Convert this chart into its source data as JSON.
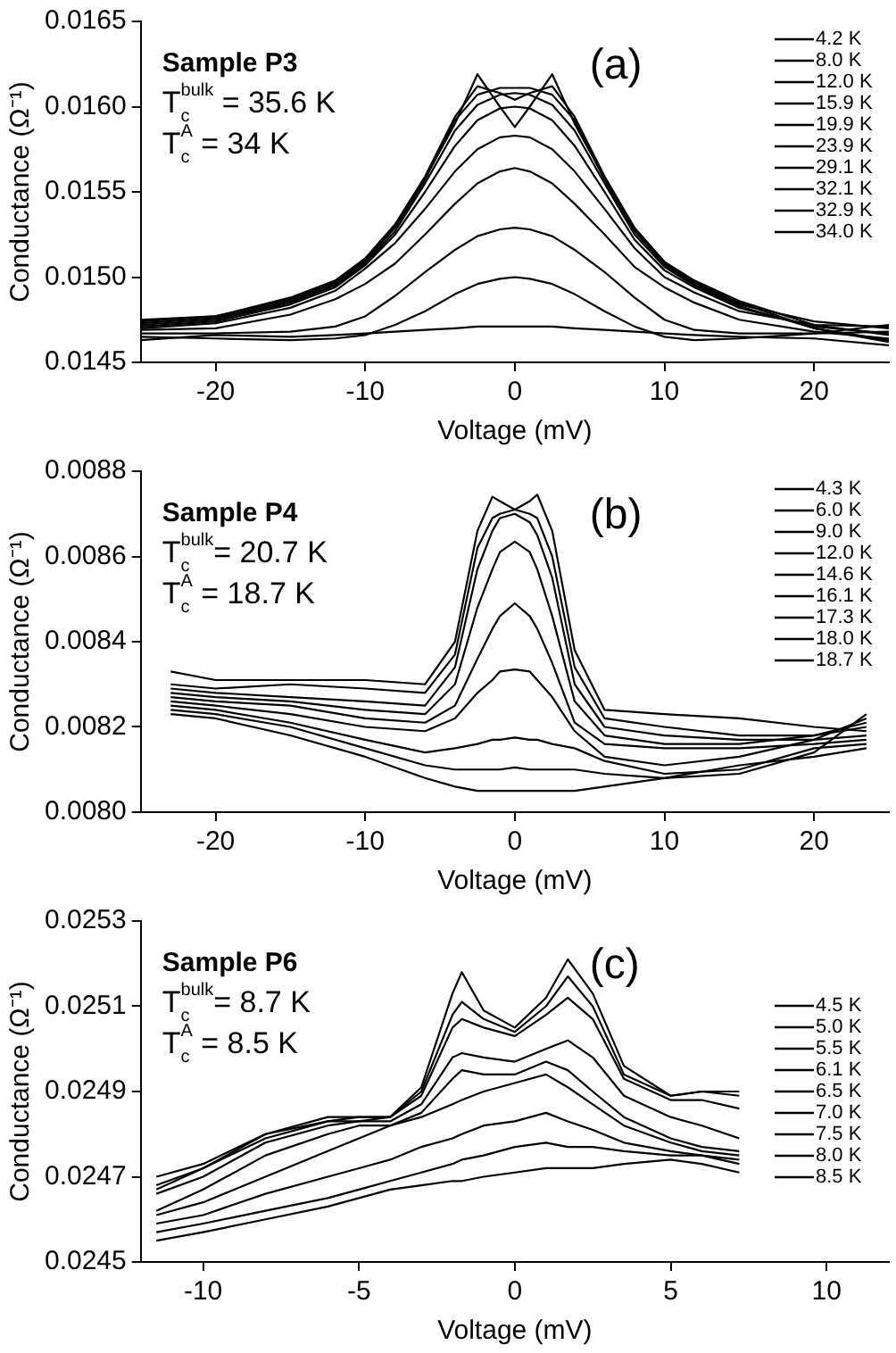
{
  "chart_data": [
    {
      "type": "line",
      "xlabel": "Voltage (mV)",
      "ylabel": "Conductance (Ω⁻¹)",
      "legend": "top right",
      "marker": "none",
      "line_style": "solid",
      "grid": false,
      "annotations": [
        "Sample P3",
        "T$_{c}$$^{bulk}$ = 35.6 K",
        "T$_{c}$$^{A}$ = 34 K",
        "(a)"
      ],
      "xlim": [
        -25,
        25
      ],
      "xticks": [
        -20,
        -10,
        0,
        10,
        20
      ],
      "ylim": [
        0.0145,
        0.0165
      ],
      "yticks": [
        0.0145,
        {
          "value": 0.015,
          "label": "0.0150"
        },
        0.0155,
        {
          "value": 0.016,
          "label": "0.0160"
        },
        0.0165
      ],
      "x": [
        -25,
        -20,
        -15,
        -12,
        -10,
        -8,
        -6,
        -4,
        -2.5,
        -1,
        0,
        1,
        2.5,
        4,
        6,
        8,
        10,
        12,
        15,
        20,
        25
      ],
      "series": [
        {
          "name": "4.2 K",
          "color": "#000000",
          "values": [
            0.01475,
            0.01477,
            0.01487,
            0.01497,
            0.0151,
            0.0153,
            0.01558,
            0.0159,
            0.01619,
            0.016,
            0.01588,
            0.016,
            0.01619,
            0.0159,
            0.01558,
            0.01528,
            0.01508,
            0.01497,
            0.01485,
            0.0147,
            0.01462
          ]
        },
        {
          "name": "8.0 K",
          "color": "#000000",
          "values": [
            0.01474,
            0.01477,
            0.01488,
            0.01498,
            0.01511,
            0.01531,
            0.01559,
            0.01594,
            0.01612,
            0.01608,
            0.01604,
            0.01608,
            0.01612,
            0.01594,
            0.01559,
            0.01529,
            0.01509,
            0.01498,
            0.01486,
            0.01472,
            0.01466
          ]
        },
        {
          "name": "12.0 K",
          "color": "#000000",
          "values": [
            0.01473,
            0.01476,
            0.01486,
            0.01496,
            0.01509,
            0.01529,
            0.01557,
            0.01592,
            0.01607,
            0.01611,
            0.01611,
            0.01611,
            0.01607,
            0.01592,
            0.01557,
            0.01527,
            0.01507,
            0.01496,
            0.01484,
            0.01474,
            0.0147
          ]
        },
        {
          "name": "15.9 K",
          "color": "#000000",
          "values": [
            0.01472,
            0.01475,
            0.01485,
            0.01495,
            0.01508,
            0.01527,
            0.01555,
            0.01586,
            0.01601,
            0.01607,
            0.01608,
            0.01607,
            0.01601,
            0.01586,
            0.01555,
            0.01525,
            0.01506,
            0.01495,
            0.01483,
            0.0147,
            0.01463
          ]
        },
        {
          "name": "19.9 K",
          "color": "#000000",
          "values": [
            0.01471,
            0.01474,
            0.01484,
            0.01494,
            0.01507,
            0.01525,
            0.0155,
            0.01577,
            0.01592,
            0.01599,
            0.016,
            0.01599,
            0.01592,
            0.01577,
            0.0155,
            0.01522,
            0.01504,
            0.01494,
            0.01482,
            0.01471,
            0.01467
          ]
        },
        {
          "name": "23.9 K",
          "color": "#000000",
          "values": [
            0.0147,
            0.01473,
            0.01482,
            0.01492,
            0.01505,
            0.0152,
            0.0154,
            0.01562,
            0.01575,
            0.01582,
            0.01583,
            0.01582,
            0.01575,
            0.01562,
            0.0154,
            0.01517,
            0.015,
            0.01491,
            0.0148,
            0.01472,
            0.01471
          ]
        },
        {
          "name": "29.1 K",
          "color": "#000000",
          "values": [
            0.01469,
            0.0147,
            0.01478,
            0.01487,
            0.01496,
            0.01508,
            0.01525,
            0.01543,
            0.01555,
            0.01562,
            0.01564,
            0.01562,
            0.01555,
            0.01543,
            0.01525,
            0.01506,
            0.01494,
            0.01485,
            0.01475,
            0.01468,
            0.01464
          ]
        },
        {
          "name": "32.1 K",
          "color": "#000000",
          "values": [
            0.01467,
            0.01467,
            0.01468,
            0.01471,
            0.01477,
            0.01489,
            0.01503,
            0.01516,
            0.01524,
            0.01528,
            0.01529,
            0.01528,
            0.01524,
            0.01516,
            0.01503,
            0.01488,
            0.01475,
            0.01469,
            0.01467,
            0.01467,
            0.01468
          ]
        },
        {
          "name": "32.9 K",
          "color": "#000000",
          "values": [
            0.01465,
            0.01464,
            0.01463,
            0.01464,
            0.01466,
            0.01472,
            0.0148,
            0.0149,
            0.01496,
            0.01499,
            0.015,
            0.01499,
            0.01496,
            0.0149,
            0.0148,
            0.01471,
            0.01465,
            0.01463,
            0.01464,
            0.01467,
            0.01472
          ]
        },
        {
          "name": "34.0 K",
          "color": "#000000",
          "values": [
            0.01463,
            0.01466,
            0.01465,
            0.01466,
            0.01467,
            0.01468,
            0.01469,
            0.0147,
            0.01471,
            0.01471,
            0.01471,
            0.01471,
            0.01471,
            0.0147,
            0.01469,
            0.01468,
            0.01467,
            0.01466,
            0.01465,
            0.01464,
            0.0146
          ]
        }
      ]
    },
    {
      "type": "line",
      "xlabel": "Voltage (mV)",
      "ylabel": "Conductance (Ω⁻¹)",
      "legend": "top right",
      "marker": "none",
      "line_style": "solid",
      "grid": false,
      "annotations": [
        "Sample P4",
        "T$_{c}$$^{bulk}$= 20.7 K",
        "T$_{c}$$^{A}$ = 18.7 K",
        "(b)"
      ],
      "xlim": [
        -25,
        25
      ],
      "xticks": [
        -20,
        -10,
        0,
        10,
        20
      ],
      "ylim": [
        0.008,
        0.0088
      ],
      "yticks": [
        {
          "value": 0.008,
          "label": "0.0080"
        },
        0.0082,
        0.0084,
        0.0086,
        0.0088
      ],
      "x": [
        -23,
        -20,
        -15,
        -10,
        -6,
        -4,
        -2.5,
        -1.5,
        -1,
        0,
        1,
        1.5,
        2.5,
        4,
        6,
        10,
        15,
        20,
        23.5
      ],
      "series": [
        {
          "name": "4.3 K",
          "color": "#000000",
          "values": [
            0.00833,
            0.00831,
            0.00831,
            0.00831,
            0.0083,
            0.0084,
            0.00866,
            0.00874,
            0.00873,
            0.00871,
            0.00873,
            0.008745,
            0.00866,
            0.00838,
            0.00824,
            0.00823,
            0.00822,
            0.0082,
            0.00819
          ]
        },
        {
          "name": "6.0 K",
          "color": "#000000",
          "values": [
            0.0083,
            0.00829,
            0.0083,
            0.00829,
            0.00828,
            0.00837,
            0.00862,
            0.00869,
            0.0087,
            0.00871,
            0.0087,
            0.00869,
            0.0086,
            0.00834,
            0.00822,
            0.0082,
            0.00818,
            0.00818,
            0.0082
          ]
        },
        {
          "name": "9.0 K",
          "color": "#000000",
          "values": [
            0.00829,
            0.00828,
            0.00827,
            0.00826,
            0.00825,
            0.00834,
            0.00857,
            0.00866,
            0.00869,
            0.0087,
            0.00868,
            0.00865,
            0.00855,
            0.0083,
            0.0082,
            0.00818,
            0.00817,
            0.00817,
            0.00818
          ]
        },
        {
          "name": "12.0 K",
          "color": "#000000",
          "values": [
            0.00828,
            0.00827,
            0.00826,
            0.00824,
            0.00823,
            0.0083,
            0.00848,
            0.00857,
            0.00861,
            0.008635,
            0.00861,
            0.00857,
            0.00846,
            0.00826,
            0.00818,
            0.00816,
            0.00816,
            0.00818,
            0.00821
          ]
        },
        {
          "name": "14.6 K",
          "color": "#000000",
          "values": [
            0.00827,
            0.00826,
            0.00825,
            0.00822,
            0.00821,
            0.00825,
            0.00836,
            0.00843,
            0.00846,
            0.00849,
            0.00846,
            0.00843,
            0.00835,
            0.00821,
            0.00816,
            0.00815,
            0.00815,
            0.00816,
            0.00817
          ]
        },
        {
          "name": "16.1 K",
          "color": "#000000",
          "values": [
            0.00826,
            0.00825,
            0.00823,
            0.0082,
            0.00819,
            0.00822,
            0.00828,
            0.00831,
            0.00833,
            0.008335,
            0.00833,
            0.00831,
            0.00827,
            0.00819,
            0.00813,
            0.00811,
            0.00813,
            0.00817,
            0.00822
          ]
        },
        {
          "name": "17.3 K",
          "color": "#000000",
          "values": [
            0.00825,
            0.00824,
            0.00821,
            0.00817,
            0.00814,
            0.00815,
            0.00816,
            0.00817,
            0.00817,
            0.008175,
            0.00817,
            0.00817,
            0.00816,
            0.00815,
            0.00812,
            0.00809,
            0.0081,
            0.00815,
            0.00816
          ]
        },
        {
          "name": "18.0 K",
          "color": "#000000",
          "values": [
            0.00824,
            0.00823,
            0.0082,
            0.00815,
            0.00811,
            0.0081,
            0.0081,
            0.0081,
            0.0081,
            0.008105,
            0.0081,
            0.0081,
            0.0081,
            0.0081,
            0.00809,
            0.00808,
            0.00809,
            0.00814,
            0.00823
          ]
        },
        {
          "name": "18.7 K",
          "color": "#000000",
          "values": [
            0.00823,
            0.00822,
            0.00818,
            0.00813,
            0.00808,
            0.00806,
            0.00805,
            0.00805,
            0.00805,
            0.00805,
            0.00805,
            0.00805,
            0.00805,
            0.00805,
            0.00806,
            0.00808,
            0.00811,
            0.00813,
            0.00815
          ]
        }
      ]
    },
    {
      "type": "line",
      "xlabel": "Voltage (mV)",
      "ylabel": "Conductance (Ω⁻¹)",
      "legend": "right",
      "marker": "none",
      "line_style": "solid",
      "grid": false,
      "annotations": [
        "Sample P6",
        "T$_{c}$$^{bulk}$= 8.7 K",
        "T$_{c}$$^{A}$ = 8.5 K",
        "(c)"
      ],
      "xlim": [
        -12,
        12
      ],
      "xticks": [
        -10,
        -5,
        0,
        5,
        10
      ],
      "ylim": [
        0.0245,
        0.0253
      ],
      "yticks": [
        0.0245,
        0.0247,
        0.0249,
        0.0251,
        0.0253
      ],
      "x": [
        -11.5,
        -10,
        -8,
        -6,
        -5,
        -4,
        -3,
        -2,
        -1.7,
        -1,
        0,
        1,
        1.7,
        2.5,
        3.5,
        5,
        6,
        7.2
      ],
      "series": [
        {
          "name": "4.5 K",
          "color": "#000000",
          "values": [
            0.0247,
            0.02473,
            0.0248,
            0.02484,
            0.02484,
            0.02484,
            0.02491,
            0.02513,
            0.02518,
            0.02509,
            0.02505,
            0.02512,
            0.02521,
            0.02513,
            0.02496,
            0.02489,
            0.0249,
            0.0249
          ]
        },
        {
          "name": "5.0 K",
          "color": "#000000",
          "values": [
            0.02468,
            0.02472,
            0.0248,
            0.02483,
            0.02484,
            0.02484,
            0.0249,
            0.02508,
            0.02511,
            0.02507,
            0.02504,
            0.0251,
            0.02517,
            0.0251,
            0.02494,
            0.02489,
            0.0249,
            0.02489
          ]
        },
        {
          "name": "5.5 K",
          "color": "#000000",
          "values": [
            0.02467,
            0.02472,
            0.02479,
            0.02483,
            0.02483,
            0.02484,
            0.02489,
            0.02505,
            0.02507,
            0.02505,
            0.02503,
            0.02508,
            0.02512,
            0.02507,
            0.02493,
            0.02488,
            0.02488,
            0.02486
          ]
        },
        {
          "name": "6.1 K",
          "color": "#000000",
          "values": [
            0.02466,
            0.0247,
            0.02478,
            0.02482,
            0.02483,
            0.02483,
            0.02487,
            0.02498,
            0.02499,
            0.02498,
            0.02497,
            0.025,
            0.02502,
            0.02498,
            0.02489,
            0.02484,
            0.02482,
            0.02479
          ]
        },
        {
          "name": "6.5 K",
          "color": "#000000",
          "values": [
            0.02462,
            0.02467,
            0.02475,
            0.0248,
            0.02482,
            0.02482,
            0.02485,
            0.02493,
            0.02495,
            0.02494,
            0.02494,
            0.02497,
            0.02495,
            0.0249,
            0.02484,
            0.02479,
            0.02477,
            0.02476
          ]
        },
        {
          "name": "7.0 K",
          "color": "#000000",
          "values": [
            0.02461,
            0.02464,
            0.0247,
            0.02476,
            0.02479,
            0.02482,
            0.02484,
            0.02487,
            0.02488,
            0.0249,
            0.02492,
            0.02494,
            0.02491,
            0.02487,
            0.02482,
            0.02478,
            0.02476,
            0.02475
          ]
        },
        {
          "name": "7.5 K",
          "color": "#000000",
          "values": [
            0.02459,
            0.02461,
            0.02466,
            0.0247,
            0.02472,
            0.02474,
            0.02477,
            0.02479,
            0.0248,
            0.02482,
            0.02483,
            0.02485,
            0.02483,
            0.02481,
            0.02478,
            0.02476,
            0.02475,
            0.02474
          ]
        },
        {
          "name": "8.0 K",
          "color": "#000000",
          "values": [
            0.02457,
            0.02459,
            0.02462,
            0.02465,
            0.02467,
            0.02469,
            0.02471,
            0.02473,
            0.02474,
            0.02475,
            0.02477,
            0.02478,
            0.02477,
            0.02477,
            0.02476,
            0.02475,
            0.02475,
            0.02473
          ]
        },
        {
          "name": "8.5 K",
          "color": "#000000",
          "values": [
            0.02455,
            0.02457,
            0.0246,
            0.02463,
            0.02465,
            0.02467,
            0.02468,
            0.02469,
            0.02469,
            0.0247,
            0.02471,
            0.02472,
            0.02472,
            0.02472,
            0.02473,
            0.02474,
            0.02473,
            0.02471
          ]
        }
      ]
    }
  ]
}
